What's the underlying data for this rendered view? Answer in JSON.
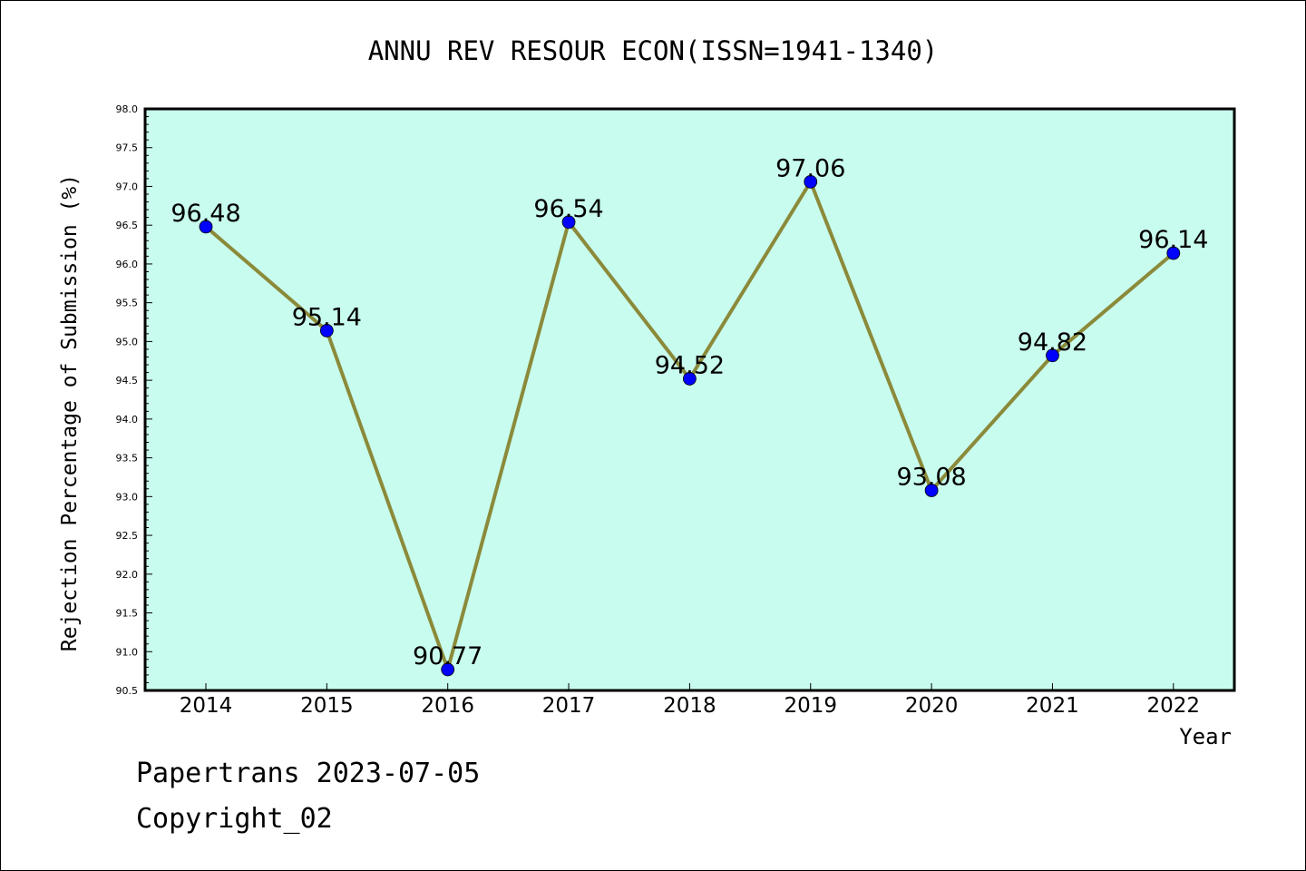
{
  "chart_data": {
    "type": "line",
    "title": "ANNU REV RESOUR ECON(ISSN=1941-1340)",
    "xlabel": "Year",
    "ylabel": "Rejection Percentage of Submission (%)",
    "categories": [
      "2014",
      "2015",
      "2016",
      "2017",
      "2018",
      "2019",
      "2020",
      "2021",
      "2022"
    ],
    "values": [
      96.48,
      95.14,
      90.77,
      96.54,
      94.52,
      97.06,
      93.08,
      94.82,
      96.14
    ],
    "value_labels": [
      "96.48",
      "95.14",
      "90.77",
      "96.54",
      "94.52",
      "97.06",
      "93.08",
      "94.82",
      "96.14"
    ],
    "ylim": [
      90.5,
      98.0
    ],
    "yticks": [
      "90.5",
      "91.0",
      "91.5",
      "92.0",
      "92.5",
      "93.0",
      "93.5",
      "94.0",
      "94.5",
      "95.0",
      "95.5",
      "96.0",
      "96.5",
      "97.0",
      "97.5",
      "98.0"
    ],
    "grid": false,
    "legend": "none",
    "colors": {
      "plot_background": "#c8fcee",
      "line": "#8b8a3a",
      "marker": "#0000ff"
    }
  },
  "footer": {
    "line1": "Papertrans 2023-07-05",
    "line2": "Copyright_02"
  }
}
